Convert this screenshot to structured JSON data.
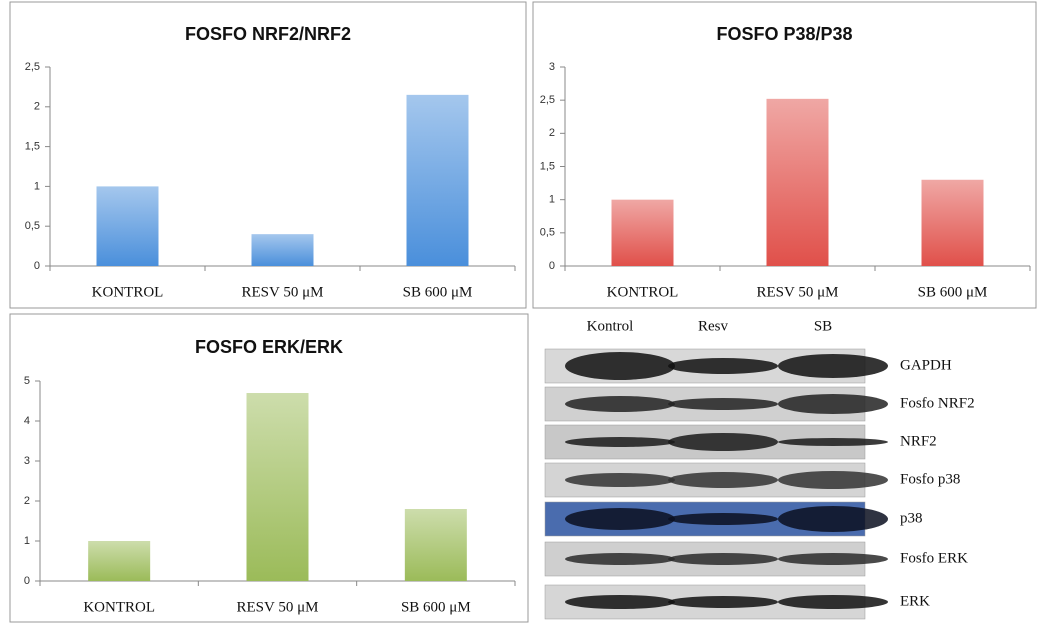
{
  "chart_data": [
    {
      "type": "bar",
      "title": "FOSFO NRF2/NRF2",
      "categories": [
        "KONTROL",
        "RESV 50 μM",
        "SB 600 μM"
      ],
      "values": [
        1,
        0.4,
        2.15
      ],
      "color": "#4a8fdb",
      "ylim": [
        0,
        2.5
      ],
      "yticks": [
        0,
        {
          "value": 0.5,
          "label": "0,5"
        },
        1,
        {
          "value": 1.5,
          "label": "1,5"
        },
        2,
        {
          "value": 2.5,
          "label": "2,5"
        }
      ],
      "grid": false
    },
    {
      "type": "bar",
      "title": "FOSFO P38/P38",
      "categories": [
        "KONTROL",
        "RESV 50 μM",
        "SB 600 μM"
      ],
      "values": [
        1,
        2.52,
        1.3
      ],
      "color": "#e0504a",
      "ylim": [
        0,
        3
      ],
      "yticks": [
        0,
        {
          "value": 0.5,
          "label": "0,5"
        },
        1,
        {
          "value": 1.5,
          "label": "1,5"
        },
        2,
        {
          "value": 2.5,
          "label": "2,5"
        },
        3
      ],
      "grid": false
    },
    {
      "type": "bar",
      "title": "FOSFO ERK/ERK",
      "categories": [
        "KONTROL",
        "RESV 50 μM",
        "SB 600 μM"
      ],
      "values": [
        1,
        4.7,
        1.8
      ],
      "color": "#9bbb59",
      "ylim": [
        0,
        5
      ],
      "yticks": [
        0,
        1,
        2,
        3,
        4,
        5
      ],
      "grid": false
    }
  ],
  "blot": {
    "lanes": [
      "Kontrol",
      "Resv",
      "SB"
    ],
    "rows": [
      "GAPDH",
      "Fosfo NRF2",
      "NRF2",
      "Fosfo p38",
      "p38",
      "Fosfo ERK",
      "ERK"
    ]
  }
}
